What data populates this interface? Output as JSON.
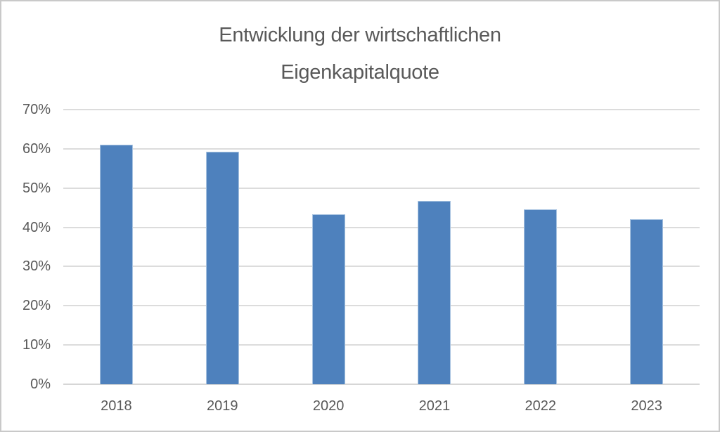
{
  "frame": {
    "border_color": "#c9c9c9",
    "background_color": "#ffffff"
  },
  "chart_data": {
    "type": "bar",
    "title": "Entwicklung der wirtschaftlichen Eigenkapitalquote",
    "categories": [
      "2018",
      "2019",
      "2020",
      "2021",
      "2022",
      "2023"
    ],
    "values": [
      61.0,
      59.3,
      43.3,
      46.7,
      44.5,
      42.1
    ],
    "unit": "%",
    "xlabel": "",
    "ylabel": "",
    "ylim": [
      0,
      70
    ],
    "ytick_step": 10,
    "ytick_labels": [
      "0%",
      "10%",
      "20%",
      "30%",
      "40%",
      "50%",
      "60%",
      "70%"
    ],
    "grid": true,
    "legend": "none",
    "bar_color": "#4e81bd",
    "bar_border_color": "#a9c4e1",
    "gridline_color": "#dcdcdc",
    "axis_line_color": "#d6d6d6",
    "text_color": "#595959"
  }
}
